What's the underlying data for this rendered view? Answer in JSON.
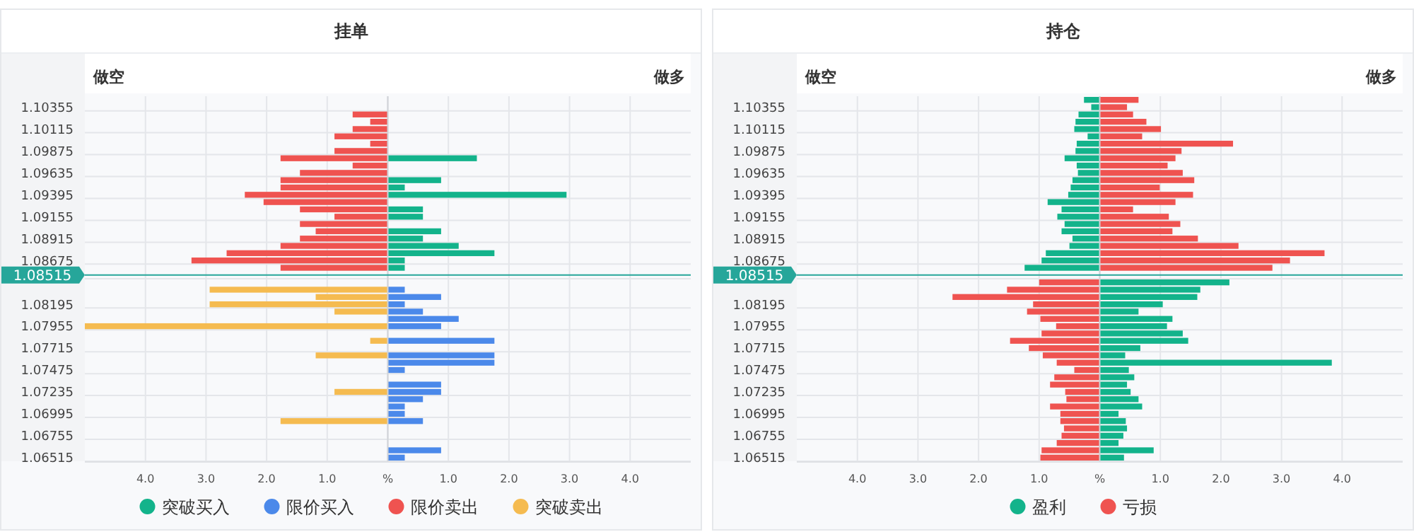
{
  "chart_data": [
    {
      "type": "bar",
      "orientation": "horizontal",
      "stacked": true,
      "title": "挂单",
      "annotations": [
        "做空",
        "做多"
      ],
      "legend": "bottom",
      "grid": true,
      "categories": [
        null,
        "1.10355",
        null,
        null,
        "1.10115",
        null,
        null,
        "1.09875",
        null,
        null,
        "1.09635",
        null,
        null,
        "1.09395",
        null,
        null,
        "1.09155",
        null,
        null,
        "1.08915",
        null,
        null,
        "1.08675",
        null,
        "1.08515",
        null,
        null,
        null,
        "1.08195",
        null,
        null,
        "1.07955",
        null,
        null,
        "1.07715",
        null,
        null,
        "1.07475",
        null,
        null,
        "1.07235",
        null,
        null,
        "1.06995",
        null,
        null,
        "1.06755",
        null,
        null,
        "1.06515"
      ],
      "xlim": [
        -5,
        5
      ],
      "xticks": [
        {
          "value": -4,
          "label": "4.0"
        },
        {
          "value": -3,
          "label": "3.0"
        },
        {
          "value": -2,
          "label": "2.0"
        },
        {
          "value": -1,
          "label": "1.0"
        },
        {
          "value": 0,
          "label": "%"
        },
        {
          "value": 1,
          "label": "1.0"
        },
        {
          "value": 2,
          "label": "2.0"
        },
        {
          "value": 3,
          "label": "3.0"
        },
        {
          "value": 4,
          "label": "4.0"
        }
      ],
      "ref_lines": [
        {
          "axis": "y",
          "value": "1.08515",
          "color": "#26a69a"
        }
      ],
      "series": [
        {
          "name": "突破买入",
          "color": "#13b38b",
          "values": [
            null,
            null,
            null,
            null,
            null,
            null,
            null,
            null,
            1.47,
            null,
            null,
            0.88,
            0.28,
            2.95,
            null,
            0.58,
            0.58,
            null,
            0.88,
            0.58,
            1.17,
            1.76,
            0.28,
            0.28,
            null,
            null,
            null,
            null,
            null,
            null,
            null,
            null,
            null,
            null,
            null,
            null,
            null,
            null,
            null,
            null,
            null,
            null,
            null,
            null,
            null,
            null,
            null,
            null,
            null,
            null
          ]
        },
        {
          "name": "限价买入",
          "color": "#4b89ea",
          "values": [
            null,
            null,
            null,
            null,
            null,
            null,
            null,
            null,
            null,
            null,
            null,
            null,
            null,
            null,
            null,
            null,
            null,
            null,
            null,
            null,
            null,
            null,
            null,
            null,
            null,
            null,
            0.28,
            0.88,
            0.28,
            0.58,
            1.17,
            0.88,
            null,
            1.76,
            null,
            1.76,
            1.76,
            0.28,
            null,
            0.88,
            0.88,
            0.58,
            0.28,
            0.28,
            0.58,
            null,
            null,
            null,
            0.88,
            0.28
          ]
        },
        {
          "name": "限价卖出",
          "color": "#ef5350",
          "values": [
            null,
            null,
            -0.58,
            -0.29,
            -0.58,
            -0.88,
            -0.29,
            -0.88,
            -1.77,
            -0.58,
            -1.45,
            -1.77,
            -1.77,
            -2.36,
            -2.05,
            -1.45,
            -0.88,
            -1.45,
            -1.19,
            -1.45,
            -1.77,
            -2.66,
            -3.24,
            -1.77,
            null,
            null,
            null,
            null,
            null,
            null,
            null,
            null,
            null,
            null,
            null,
            null,
            null,
            null,
            null,
            null,
            null,
            null,
            null,
            null,
            null,
            null,
            null,
            null,
            null,
            null
          ]
        },
        {
          "name": "突破卖出",
          "color": "#f5bb50",
          "values": [
            null,
            null,
            null,
            null,
            null,
            null,
            null,
            null,
            null,
            null,
            null,
            null,
            null,
            null,
            null,
            null,
            null,
            null,
            null,
            null,
            null,
            null,
            null,
            null,
            null,
            null,
            -2.94,
            -1.19,
            -2.94,
            -0.88,
            null,
            -5.0,
            null,
            -0.29,
            null,
            -1.19,
            null,
            null,
            null,
            null,
            -0.88,
            null,
            null,
            null,
            -1.77,
            null,
            null,
            null,
            null,
            null
          ]
        }
      ]
    },
    {
      "type": "bar",
      "orientation": "horizontal",
      "stacked": true,
      "title": "持仓",
      "annotations": [
        "做空",
        "做多"
      ],
      "legend": "bottom",
      "grid": true,
      "categories": [
        null,
        "1.10355",
        null,
        null,
        "1.10115",
        null,
        null,
        "1.09875",
        null,
        null,
        "1.09635",
        null,
        null,
        "1.09395",
        null,
        null,
        "1.09155",
        null,
        null,
        "1.08915",
        null,
        null,
        "1.08675",
        null,
        "1.08515",
        null,
        null,
        null,
        "1.08195",
        null,
        null,
        "1.07955",
        null,
        null,
        "1.07715",
        null,
        null,
        "1.07475",
        null,
        null,
        "1.07235",
        null,
        null,
        "1.06995",
        null,
        null,
        "1.06755",
        null,
        null,
        "1.06515"
      ],
      "xlim": [
        -5,
        5
      ],
      "xticks": [
        {
          "value": -4,
          "label": "4.0"
        },
        {
          "value": -3,
          "label": "3.0"
        },
        {
          "value": -2,
          "label": "2.0"
        },
        {
          "value": -1,
          "label": "1.0"
        },
        {
          "value": 0,
          "label": "%"
        },
        {
          "value": 1,
          "label": "1.0"
        },
        {
          "value": 2,
          "label": "2.0"
        },
        {
          "value": 3,
          "label": "3.0"
        },
        {
          "value": 4,
          "label": "4.0"
        }
      ],
      "ref_lines": [
        {
          "axis": "y",
          "value": "1.08515",
          "color": "#26a69a"
        }
      ],
      "series": [
        {
          "name": "盈利",
          "color": "#13b38b",
          "values": [
            -0.26,
            -0.14,
            -0.35,
            -0.4,
            -0.42,
            -0.2,
            -0.38,
            -0.4,
            -0.58,
            -0.38,
            -0.36,
            -0.45,
            -0.48,
            -0.52,
            -0.86,
            -0.63,
            -0.7,
            -0.58,
            -0.63,
            -0.45,
            -0.5,
            -0.89,
            -0.96,
            -1.24,
            null,
            2.14,
            1.66,
            1.61,
            1.04,
            0.64,
            1.2,
            1.11,
            1.37,
            1.46,
            0.67,
            0.42,
            3.83,
            0.48,
            0.57,
            0.45,
            0.51,
            0.64,
            0.7,
            0.31,
            0.43,
            0.45,
            0.39,
            0.31,
            0.89,
            0.4
          ]
        },
        {
          "name": "亏损",
          "color": "#ef5350",
          "values": [
            0.64,
            0.45,
            0.55,
            0.77,
            1.01,
            0.7,
            2.2,
            1.35,
            1.25,
            1.12,
            1.37,
            1.56,
            0.99,
            1.54,
            1.25,
            0.55,
            1.14,
            1.33,
            1.2,
            1.62,
            2.29,
            3.71,
            3.14,
            2.85,
            null,
            -1.0,
            -1.53,
            -2.43,
            -1.1,
            -1.2,
            -0.98,
            -0.72,
            -0.96,
            -1.48,
            -1.17,
            -0.94,
            -0.71,
            -0.42,
            -0.75,
            -0.82,
            -0.57,
            -0.55,
            -0.82,
            -0.65,
            -0.65,
            -0.59,
            -0.63,
            -0.71,
            -0.96,
            -0.98
          ]
        }
      ]
    }
  ]
}
